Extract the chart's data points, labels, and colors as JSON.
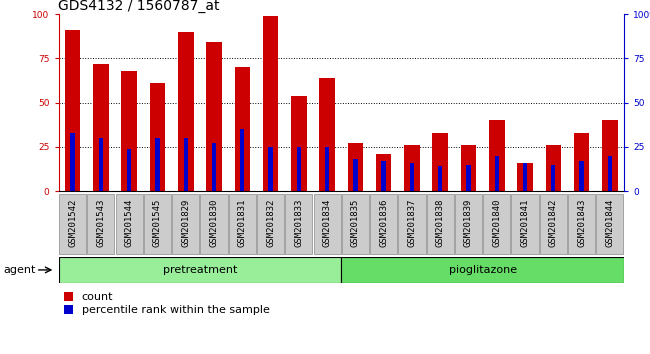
{
  "title": "GDS4132 / 1560787_at",
  "categories": [
    "GSM201542",
    "GSM201543",
    "GSM201544",
    "GSM201545",
    "GSM201829",
    "GSM201830",
    "GSM201831",
    "GSM201832",
    "GSM201833",
    "GSM201834",
    "GSM201835",
    "GSM201836",
    "GSM201837",
    "GSM201838",
    "GSM201839",
    "GSM201840",
    "GSM201841",
    "GSM201842",
    "GSM201843",
    "GSM201844"
  ],
  "count_values": [
    91,
    72,
    68,
    61,
    90,
    84,
    70,
    99,
    54,
    64,
    27,
    21,
    26,
    33,
    26,
    40,
    16,
    26,
    33,
    40
  ],
  "percentile_values": [
    33,
    30,
    24,
    30,
    30,
    27,
    35,
    25,
    25,
    25,
    18,
    17,
    16,
    14,
    15,
    20,
    16,
    15,
    17,
    20
  ],
  "bar_color": "#cc0000",
  "percentile_color": "#0000cc",
  "ylim": [
    0,
    100
  ],
  "yticks": [
    0,
    25,
    50,
    75,
    100
  ],
  "bg_color": "#ffffff",
  "tick_bg_color": "#cccccc",
  "pretreatment_color": "#99ee99",
  "pioglitazone_color": "#66dd66",
  "pretreatment_count": 10,
  "pioglitazone_count": 10,
  "bar_width": 0.55,
  "agent_label": "agent",
  "pretreatment_label": "pretreatment",
  "pioglitazone_label": "pioglitazone",
  "legend_count_label": "count",
  "legend_percentile_label": "percentile rank within the sample",
  "title_fontsize": 10,
  "tick_fontsize": 6.5,
  "label_fontsize": 8,
  "left_tick_color": "#cc0000",
  "right_tick_color": "#0000cc"
}
